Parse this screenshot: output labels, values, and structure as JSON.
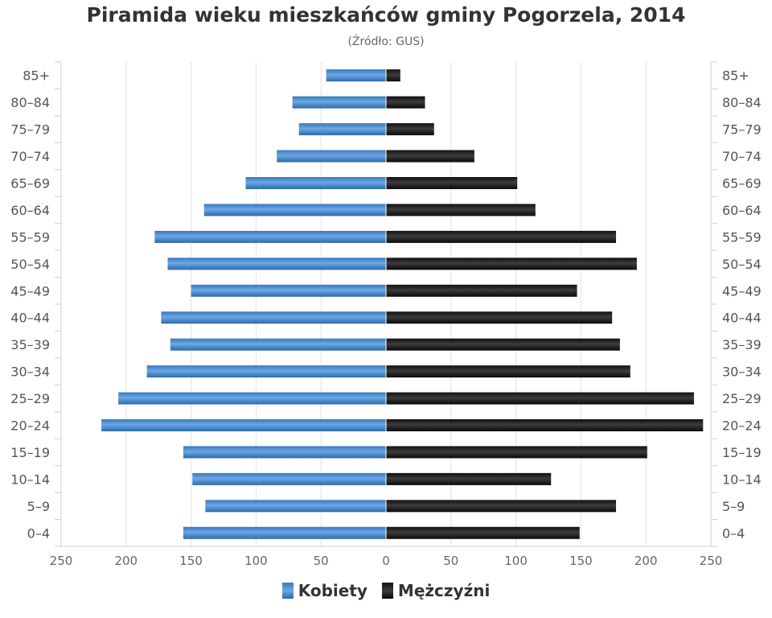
{
  "chart_data": {
    "type": "bar",
    "title": "Piramida wieku mieszkańców gminy Pogorzela, 2014",
    "subtitle": "(Źródło: GUS)",
    "categories": [
      "85+",
      "80–84",
      "75–79",
      "70–74",
      "65–69",
      "60–64",
      "55–59",
      "50–54",
      "45–49",
      "40–44",
      "35–39",
      "30–34",
      "25–29",
      "20–24",
      "15–19",
      "10–14",
      "5–9",
      "0–4"
    ],
    "series": [
      {
        "name": "Kobiety",
        "color": "#4a8fd6",
        "values": [
          46,
          72,
          67,
          84,
          108,
          140,
          178,
          168,
          150,
          173,
          166,
          184,
          206,
          219,
          156,
          149,
          139,
          156
        ]
      },
      {
        "name": "Mężczyźni",
        "color": "#1a1a1a",
        "values": [
          11,
          30,
          37,
          68,
          101,
          115,
          177,
          193,
          147,
          174,
          180,
          188,
          237,
          244,
          201,
          127,
          177,
          149
        ]
      }
    ],
    "xlim": [
      -250,
      250
    ],
    "xticks": [
      "250",
      "200",
      "150",
      "100",
      "50",
      "0",
      "50",
      "100",
      "150",
      "200",
      "250"
    ],
    "grid": true,
    "legend_position": "bottom"
  }
}
